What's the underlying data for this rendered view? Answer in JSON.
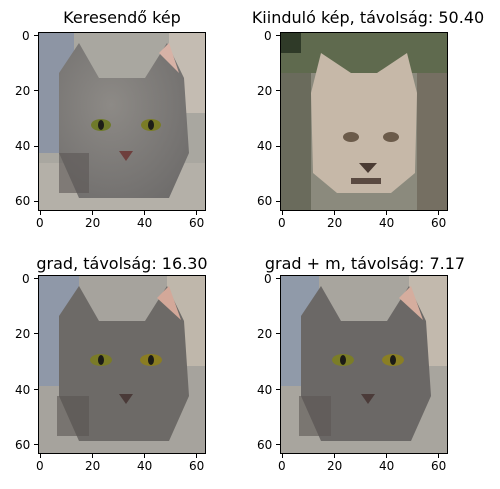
{
  "figure": {
    "panels": [
      {
        "title": "Keresendő kép",
        "variant": "target"
      },
      {
        "title": "Kiinduló kép, távolság: 50.40",
        "variant": "start"
      },
      {
        "title": "grad, távolság: 16.30",
        "variant": "grad"
      },
      {
        "title": "grad + m, távolság: 7.17",
        "variant": "gradm"
      }
    ],
    "y_ticks": [
      "0",
      "20",
      "40",
      "60"
    ],
    "x_ticks": [
      "0",
      "20",
      "40",
      "60"
    ]
  }
}
